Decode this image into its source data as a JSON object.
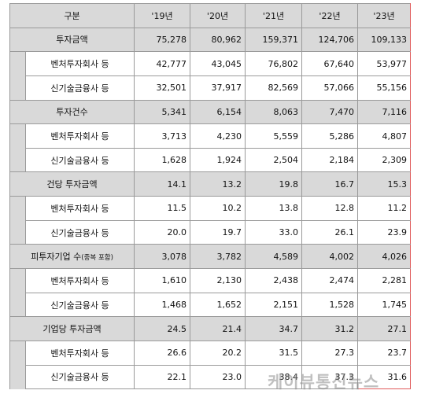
{
  "header": [
    "구분",
    "'19년",
    "'20년",
    "'21년",
    "'22년",
    "'23년"
  ],
  "groups": [
    {
      "label": "투자금액",
      "values": [
        "75,278",
        "80,962",
        "159,371",
        "124,706",
        "109,133"
      ],
      "subs": [
        {
          "label": "벤처투자회사 등",
          "values": [
            "42,777",
            "43,045",
            "76,802",
            "67,640",
            "53,977"
          ]
        },
        {
          "label": "신기술금융사 등",
          "values": [
            "32,501",
            "37,917",
            "82,569",
            "57,066",
            "55,156"
          ]
        }
      ]
    },
    {
      "label": "투자건수",
      "values": [
        "5,341",
        "6,154",
        "8,063",
        "7,470",
        "7,116"
      ],
      "subs": [
        {
          "label": "벤처투자회사 등",
          "values": [
            "3,713",
            "4,230",
            "5,559",
            "5,286",
            "4,807"
          ]
        },
        {
          "label": "신기술금융사 등",
          "values": [
            "1,628",
            "1,924",
            "2,504",
            "2,184",
            "2,309"
          ]
        }
      ]
    },
    {
      "label": "건당 투자금액",
      "values": [
        "14.1",
        "13.2",
        "19.8",
        "16.7",
        "15.3"
      ],
      "subs": [
        {
          "label": "벤처투자회사 등",
          "values": [
            "11.5",
            "10.2",
            "13.8",
            "12.8",
            "11.2"
          ]
        },
        {
          "label": "신기술금융사 등",
          "values": [
            "20.0",
            "19.7",
            "33.0",
            "26.1",
            "23.9"
          ]
        }
      ]
    },
    {
      "label": "피투자기업 수",
      "label_note": "(중복 포함)",
      "values": [
        "3,078",
        "3,782",
        "4,589",
        "4,002",
        "4,026"
      ],
      "subs": [
        {
          "label": "벤처투자회사 등",
          "values": [
            "1,610",
            "2,130",
            "2,438",
            "2,474",
            "2,281"
          ]
        },
        {
          "label": "신기술금융사 등",
          "values": [
            "1,468",
            "1,652",
            "2,151",
            "1,528",
            "1,745"
          ]
        }
      ]
    },
    {
      "label": "기업당 투자금액",
      "values": [
        "24.5",
        "21.4",
        "34.7",
        "31.2",
        "27.1"
      ],
      "subs": [
        {
          "label": "벤처투자회사 등",
          "values": [
            "26.6",
            "20.2",
            "31.5",
            "27.3",
            "23.7"
          ]
        },
        {
          "label": "신기술금융사 등",
          "values": [
            "22.1",
            "23.0",
            "38.4",
            "37.3",
            "31.6"
          ]
        }
      ]
    }
  ],
  "watermark": "케이뷰통신뉴스"
}
